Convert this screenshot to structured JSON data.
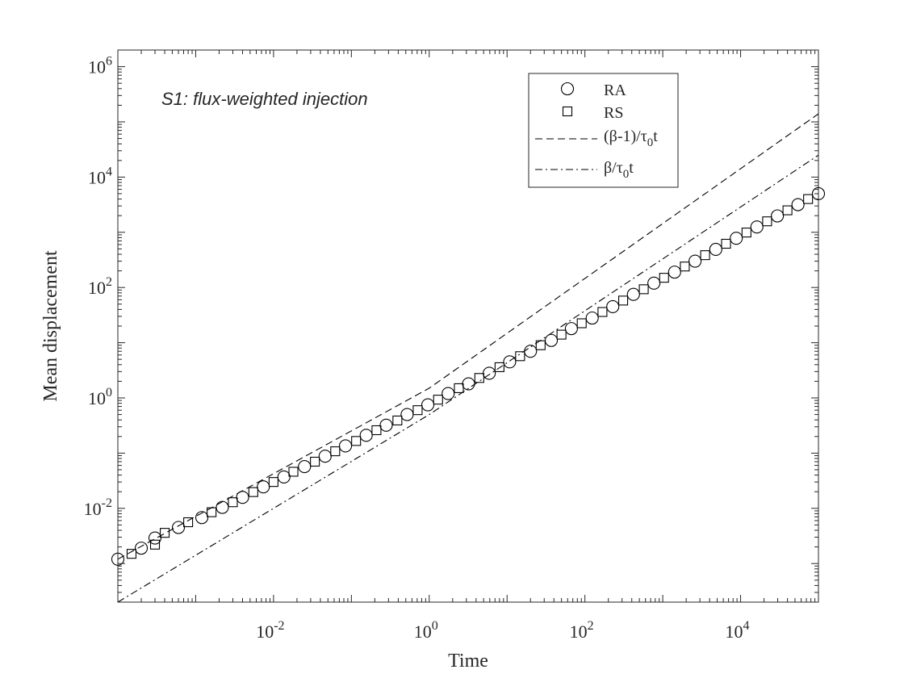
{
  "chart_data": {
    "type": "scatter",
    "annotation": "S1: flux-weighted injection",
    "xlabel": "Time",
    "ylabel": "Mean displacement",
    "xscale": "log",
    "yscale": "log",
    "xlim": [
      0.0001,
      100000
    ],
    "ylim": [
      0.0002,
      2000000
    ],
    "x_ticks": [
      {
        "base": "10",
        "exp": "-2",
        "value": 0.01
      },
      {
        "base": "10",
        "exp": "0",
        "value": 1
      },
      {
        "base": "10",
        "exp": "2",
        "value": 100
      },
      {
        "base": "10",
        "exp": "4",
        "value": 10000
      }
    ],
    "y_ticks": [
      {
        "base": "10",
        "exp": "-2",
        "value": 0.01
      },
      {
        "base": "10",
        "exp": "0",
        "value": 1
      },
      {
        "base": "10",
        "exp": "2",
        "value": 100
      },
      {
        "base": "10",
        "exp": "4",
        "value": 10000
      },
      {
        "base": "10",
        "exp": "6",
        "value": 1000000
      }
    ],
    "grid": false,
    "legend_position": "top-right",
    "legend": {
      "ra": "RA",
      "rs": "RS",
      "dashed": {
        "prefix": "(β-1)/τ",
        "sub": "0",
        "suffix": "t"
      },
      "dashdot": {
        "prefix": "β/τ",
        "sub": "0",
        "suffix": "t"
      }
    },
    "series": [
      {
        "id": "ra",
        "marker": "circle",
        "x": [
          0.0001,
          0.0002,
          0.0003,
          0.0006,
          0.0012,
          0.0022,
          0.004,
          0.0074,
          0.0136,
          0.025,
          0.046,
          0.084,
          0.155,
          0.28,
          0.52,
          0.96,
          1.75,
          3.2,
          5.9,
          10.8,
          20,
          37,
          67,
          124,
          228,
          420,
          770,
          1420,
          2600,
          4800,
          8800,
          16200,
          29700,
          54600,
          100000
        ],
        "y": [
          0.0012,
          0.0019,
          0.0029,
          0.0045,
          0.0068,
          0.0104,
          0.0158,
          0.0245,
          0.037,
          0.057,
          0.088,
          0.135,
          0.21,
          0.32,
          0.5,
          0.75,
          1.2,
          1.8,
          2.8,
          4.5,
          7,
          11,
          18,
          28,
          45,
          75,
          120,
          190,
          300,
          490,
          780,
          1250,
          1980,
          3170,
          5000
        ]
      },
      {
        "id": "rs",
        "marker": "square",
        "x": [
          0.00015,
          0.0003,
          0.0004,
          0.0008,
          0.0016,
          0.003,
          0.0055,
          0.01,
          0.018,
          0.034,
          0.062,
          0.115,
          0.21,
          0.39,
          0.71,
          1.3,
          2.4,
          4.4,
          8,
          14.7,
          27,
          50,
          91,
          168,
          310,
          570,
          1040,
          1920,
          3500,
          6500,
          11900,
          21900,
          40000,
          73600
        ],
        "y": [
          0.0015,
          0.0022,
          0.0036,
          0.0056,
          0.0085,
          0.0129,
          0.0197,
          0.03,
          0.046,
          0.07,
          0.108,
          0.166,
          0.26,
          0.39,
          0.6,
          0.93,
          1.5,
          2.3,
          3.6,
          5.7,
          9,
          14,
          22.5,
          36,
          58,
          93,
          150,
          240,
          385,
          620,
          990,
          1580,
          2500,
          4000
        ]
      },
      {
        "id": "dashed",
        "line": "dashed",
        "x": [
          0.0001,
          1,
          100000
        ],
        "y": [
          0.0012,
          1.5,
          140000
        ]
      },
      {
        "id": "dashdot",
        "line": "dashdot",
        "x": [
          0.0001,
          1,
          100000
        ],
        "y": [
          0.0002,
          0.5,
          25000
        ]
      }
    ]
  }
}
